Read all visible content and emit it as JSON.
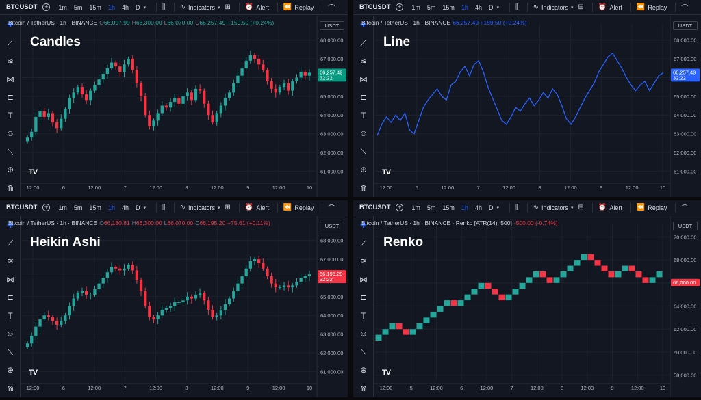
{
  "toolbar": {
    "symbol": "BTCUSDT",
    "plus": "+",
    "intervals": [
      "1m",
      "5m",
      "15m",
      "1h",
      "4h",
      "D"
    ],
    "active_interval": "1h",
    "indicators_label": "Indicators",
    "alert_label": "Alert",
    "replay_label": "Replay"
  },
  "currency_label": "USDT",
  "tools": [
    {
      "name": "crosshair-icon",
      "glyph": "✚"
    },
    {
      "name": "trend-line-icon",
      "glyph": "⟋"
    },
    {
      "name": "fib-icon",
      "glyph": "≋"
    },
    {
      "name": "pattern-icon",
      "glyph": "⋈"
    },
    {
      "name": "forecast-icon",
      "glyph": "⊏"
    },
    {
      "name": "text-icon",
      "glyph": "T"
    },
    {
      "name": "emoji-icon",
      "glyph": "☺"
    },
    {
      "name": "ruler-icon",
      "glyph": "⟍"
    },
    {
      "name": "zoom-icon",
      "glyph": "⊕"
    },
    {
      "name": "magnet-icon",
      "glyph": "⋒"
    }
  ],
  "tv_logo": "TV",
  "panels": [
    {
      "id": "candles",
      "title": "Candles",
      "legend": {
        "name": "Bitcoin / TetherUS · 1h · BINANCE",
        "o": "66,097.99",
        "h": "66,300.00",
        "l": "66,070.00",
        "c": "66,257.49",
        "change": "+159.50 (+0.24%)",
        "color": "#26a69a"
      },
      "price_tag": {
        "price": "66,257.49",
        "timer": "32:22",
        "color": "#089981"
      }
    },
    {
      "id": "line",
      "title": "Line",
      "legend": {
        "name": "Bitcoin / TetherUS · 1h · BINANCE",
        "change": "66,257.49  +159.50 (+0.24%)",
        "color": "#2962ff"
      },
      "price_tag": {
        "price": "66,257.49",
        "timer": "32:22",
        "color": "#2962ff"
      }
    },
    {
      "id": "heikin",
      "title": "Heikin Ashi",
      "legend": {
        "name": "Bitcoin / TetherUS · 1h · BINANCE",
        "o": "66,180.81",
        "h": "66,300.00",
        "l": "66,070.00",
        "c": "66,195.20",
        "change": "+75.61 (+0.11%)",
        "color": "#f23645"
      },
      "price_tag": {
        "price": "66,195.20",
        "timer": "32:22",
        "color": "#f23645"
      }
    },
    {
      "id": "renko",
      "title": "Renko",
      "legend": {
        "name": "Bitcoin / TetherUS · 1h · BINANCE · Renko [ATR(14), 500]",
        "change": "-500.00 (-0.74%)",
        "color": "#f23645"
      },
      "price_tag": {
        "price": "66,000.00",
        "timer": "",
        "color": "#f23645"
      }
    }
  ],
  "chart_data": [
    {
      "type": "candlestick",
      "title": "Candles",
      "ylim": [
        60500,
        68500
      ],
      "y_ticks": [
        61000,
        62000,
        63000,
        64000,
        65000,
        66000,
        67000,
        68000
      ],
      "x_ticks": [
        "12:00",
        "6",
        "12:00",
        "7",
        "12:00",
        "8",
        "12:00",
        "9",
        "12:00",
        "10"
      ],
      "series": [
        {
          "name": "BTCUSDT",
          "close": [
            62800,
            63100,
            63900,
            64200,
            63900,
            64100,
            63600,
            63300,
            63800,
            64300,
            64900,
            65200,
            65500,
            65100,
            64800,
            65300,
            65600,
            65900,
            66200,
            66500,
            66800,
            66600,
            66300,
            66700,
            67000,
            66400,
            65700,
            65000,
            64000,
            63400,
            63700,
            64100,
            64500,
            64400,
            64700,
            64900,
            64600,
            65000,
            65200,
            64800,
            65400,
            65300,
            64600,
            64000,
            63600,
            64100,
            64500,
            64900,
            65200,
            65700,
            66100,
            66500,
            66900,
            67200,
            67000,
            66700,
            66400,
            65800,
            65400,
            65200,
            65500,
            65700,
            65300,
            65800,
            66000,
            66300,
            66100,
            66257
          ]
        }
      ]
    },
    {
      "type": "line",
      "title": "Line",
      "ylim": [
        60500,
        68500
      ],
      "y_ticks": [
        61000,
        62000,
        63000,
        64000,
        65000,
        66000,
        67000,
        68000
      ],
      "x_ticks": [
        "12:00",
        "5",
        "12:00",
        "7",
        "12:00",
        "8",
        "12:00",
        "9",
        "12:00",
        "10"
      ],
      "series": [
        {
          "name": "BTCUSDT",
          "values": [
            62900,
            63500,
            63900,
            63600,
            64000,
            63700,
            64100,
            63200,
            63000,
            63700,
            64400,
            64800,
            65100,
            65400,
            65000,
            64800,
            65600,
            65800,
            66300,
            66600,
            66100,
            66700,
            66900,
            66300,
            65500,
            64900,
            64300,
            63700,
            63500,
            63900,
            64400,
            64200,
            64600,
            64900,
            64500,
            64800,
            65200,
            64900,
            65400,
            65100,
            64500,
            63800,
            63500,
            63900,
            64400,
            64900,
            65300,
            65700,
            66300,
            66700,
            67100,
            67300,
            66900,
            66500,
            66000,
            65600,
            65300,
            65600,
            65800,
            65300,
            65700,
            66100,
            66257
          ]
        }
      ]
    },
    {
      "type": "candlestick",
      "title": "Heikin Ashi",
      "ylim": [
        60500,
        68500
      ],
      "y_ticks": [
        61000,
        62000,
        63000,
        64000,
        65000,
        66000,
        67000,
        68000
      ],
      "x_ticks": [
        "12:00",
        "6",
        "12:00",
        "7",
        "12:00",
        "8",
        "12:00",
        "9",
        "12:00",
        "10"
      ],
      "series": [
        {
          "name": "BTCUSDT",
          "close": [
            62500,
            62900,
            63400,
            63800,
            64000,
            63900,
            63700,
            63500,
            63700,
            64000,
            64500,
            64900,
            65200,
            65300,
            65100,
            65100,
            65400,
            65700,
            66000,
            66300,
            66600,
            66500,
            66400,
            66500,
            66700,
            66400,
            65900,
            65300,
            64500,
            63900,
            63800,
            64000,
            64300,
            64400,
            64500,
            64700,
            64700,
            64800,
            65000,
            64900,
            65100,
            65200,
            64800,
            64300,
            63900,
            64000,
            64300,
            64600,
            64900,
            65300,
            65700,
            66100,
            66500,
            66900,
            67000,
            66800,
            66500,
            66100,
            65700,
            65500,
            65500,
            65600,
            65500,
            65600,
            65800,
            66000,
            66100,
            66195
          ]
        }
      ]
    },
    {
      "type": "renko",
      "title": "Renko",
      "box_size": 500,
      "ylim": [
        57500,
        70500
      ],
      "y_ticks": [
        58000,
        60000,
        62000,
        64000,
        66000,
        68000,
        70000
      ],
      "x_ticks": [
        "12:00",
        "5",
        "12:00",
        "6",
        "12:00",
        "7",
        "12:00",
        "8",
        "12:00",
        "9",
        "12:00",
        "10"
      ],
      "series": [
        {
          "name": "BTCUSDT",
          "bricks": [
            1,
            1,
            1,
            -1,
            -1,
            1,
            1,
            1,
            1,
            1,
            1,
            -1,
            1,
            1,
            1,
            1,
            -1,
            -1,
            -1,
            1,
            1,
            1,
            1,
            1,
            -1,
            -1,
            1,
            1,
            1,
            1,
            1,
            -1,
            -1,
            -1,
            -1,
            1,
            1,
            -1,
            -1,
            -1,
            1,
            1
          ]
        }
      ]
    }
  ]
}
